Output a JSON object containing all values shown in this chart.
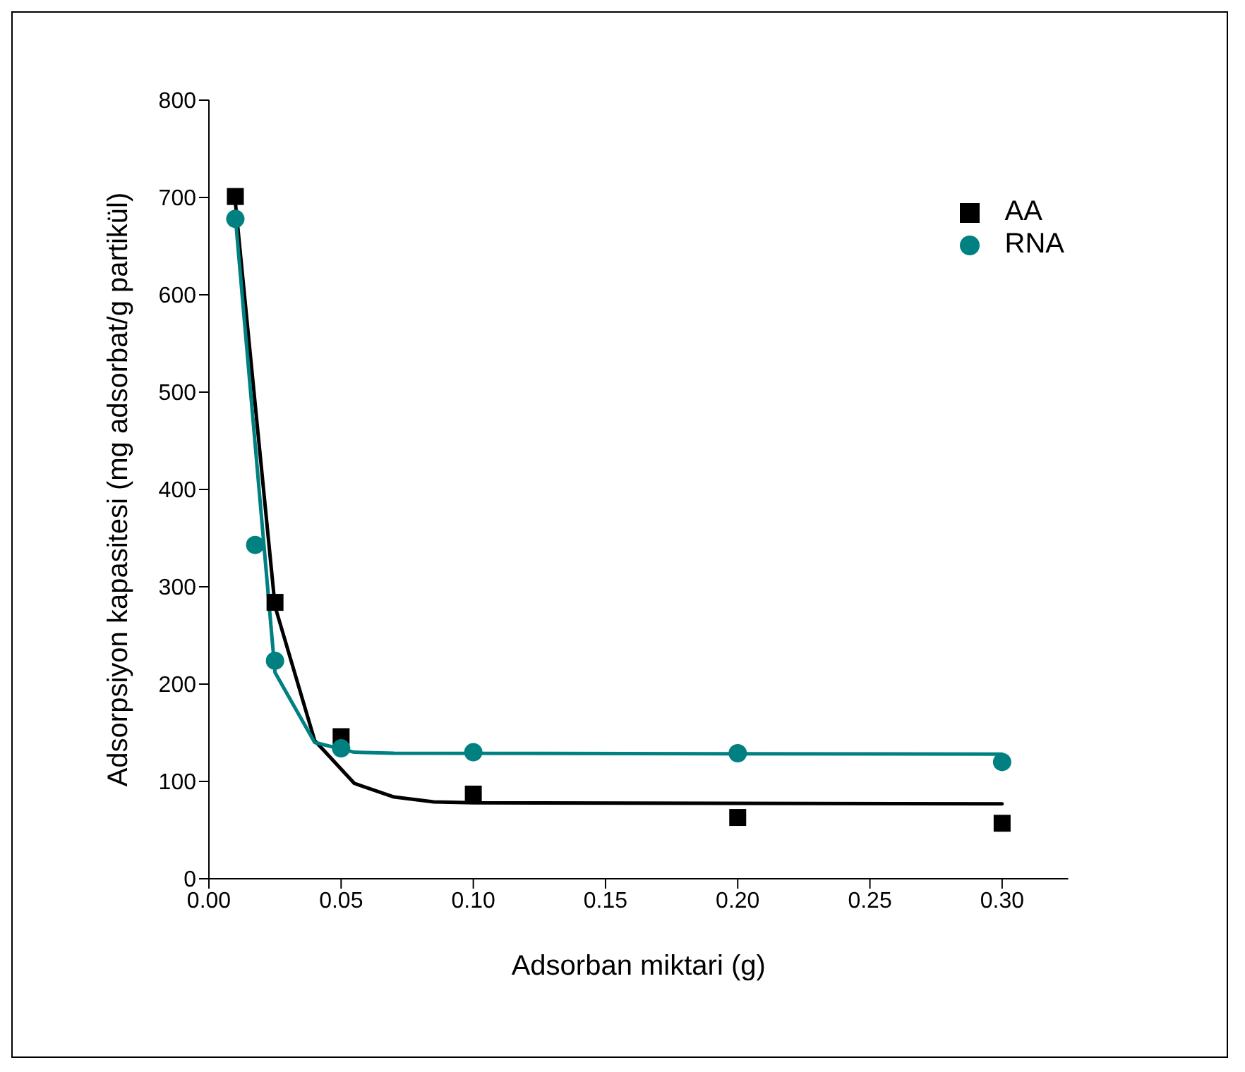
{
  "chart_data": {
    "type": "scatter",
    "xlabel": "Adsorban miktari (g)",
    "ylabel": "Adsorpsiyon kapasitesi (mg adsorbat/g partikül)",
    "xlim": [
      0,
      0.325
    ],
    "ylim": [
      0,
      800
    ],
    "xticks": [
      {
        "value": 0,
        "label": "0.00"
      },
      {
        "value": 0.05,
        "label": "0.05"
      },
      {
        "value": 0.1,
        "label": "0.10"
      },
      {
        "value": 0.15,
        "label": "0.15"
      },
      {
        "value": 0.2,
        "label": "0.20"
      },
      {
        "value": 0.25,
        "label": "0.25"
      },
      {
        "value": 0.3,
        "label": "0.30"
      }
    ],
    "yticks": [
      0,
      100,
      200,
      300,
      400,
      500,
      600,
      700,
      800
    ],
    "legend": "top right",
    "series": [
      {
        "type": "line",
        "color": "#000000",
        "marker": "none",
        "line_style": "solid",
        "x": [
          0.01,
          0.025,
          0.04,
          0.055,
          0.07,
          0.085,
          0.1,
          0.3
        ],
        "values": [
          695,
          280,
          142,
          98,
          84,
          79,
          78,
          77
        ]
      },
      {
        "type": "line",
        "color": "#008080",
        "marker": "none",
        "line_style": "solid",
        "x": [
          0.01,
          0.025,
          0.04,
          0.055,
          0.07,
          0.3
        ],
        "values": [
          680,
          212,
          140,
          130,
          129,
          128
        ]
      },
      {
        "name": "AA",
        "color": "#000000",
        "marker": "square",
        "x": [
          0.01,
          0.025,
          0.05,
          0.1,
          0.2,
          0.3
        ],
        "values": [
          701,
          284,
          146,
          87,
          63,
          57
        ]
      },
      {
        "name": "RNA",
        "color": "#008080",
        "marker": "circle",
        "x": [
          0.01,
          0.0175,
          0.025,
          0.05,
          0.1,
          0.2,
          0.3
        ],
        "values": [
          678,
          343,
          224,
          134,
          130,
          129,
          120
        ]
      }
    ]
  }
}
